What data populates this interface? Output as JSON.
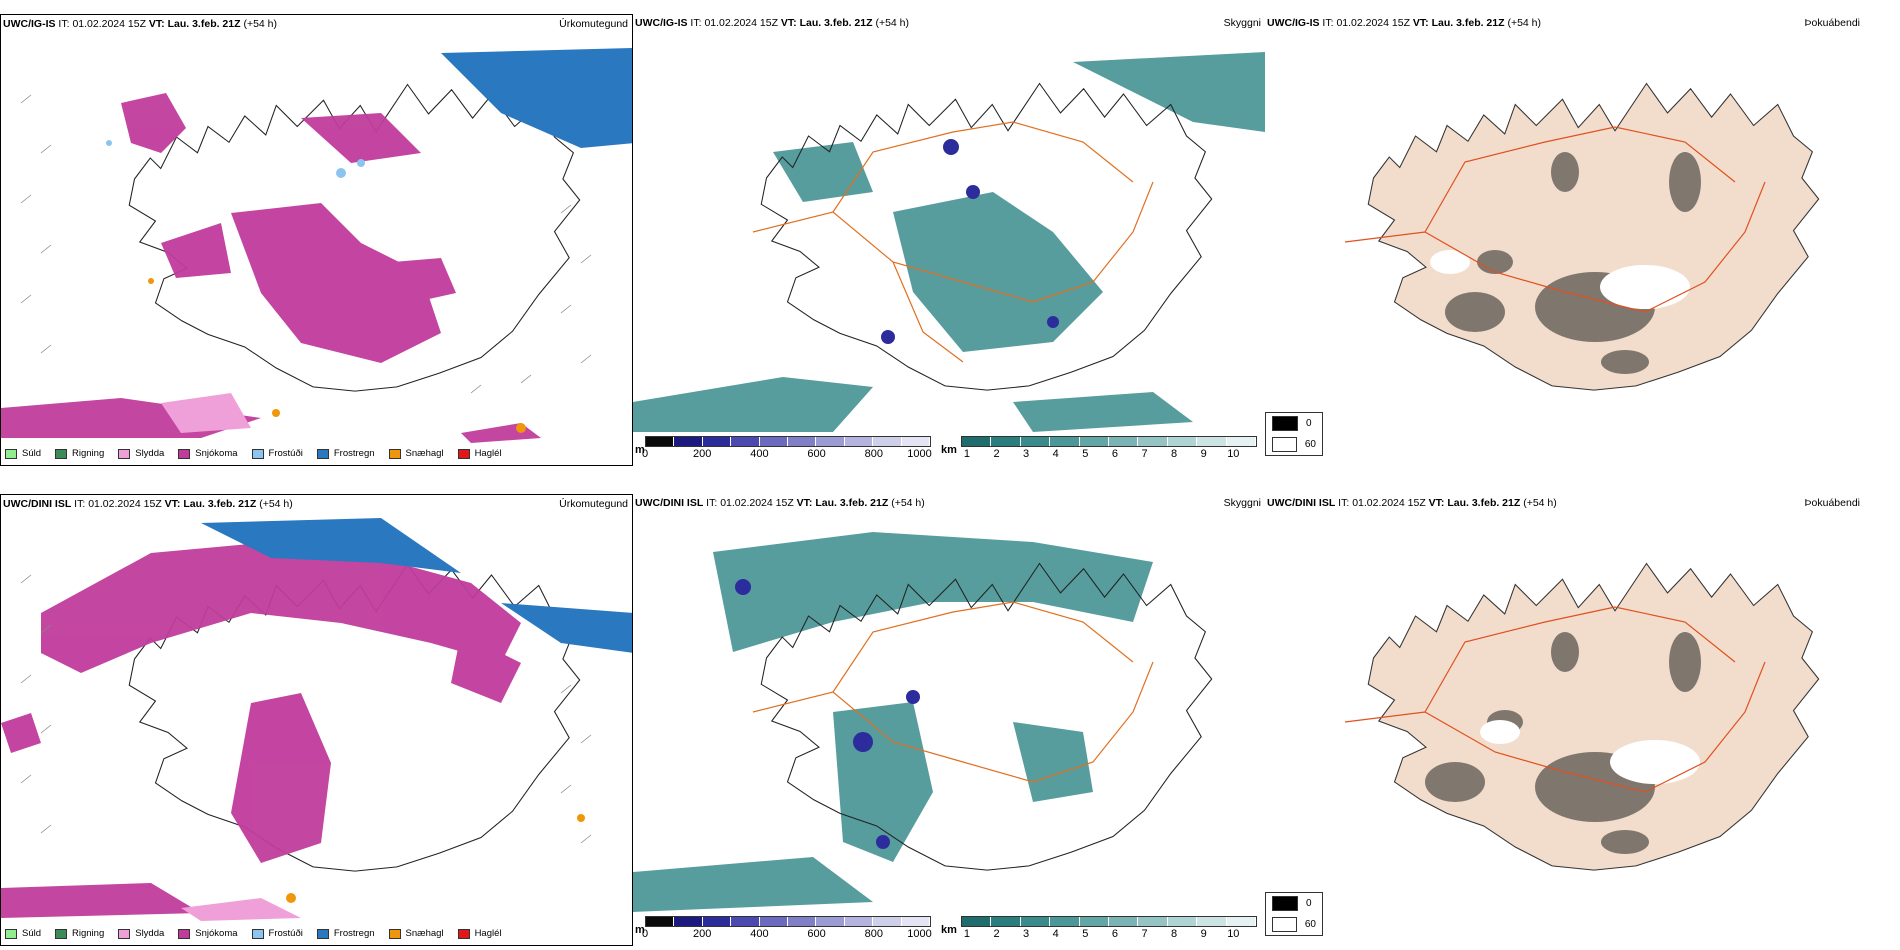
{
  "rows": [
    {
      "header": {
        "model": "UWC/IG-IS",
        "it_label": "IT:",
        "it_value": "01.02.2024 15Z",
        "vt_label": "VT:",
        "vt_value": "Lau. 3.feb. 21Z",
        "lead": "(+54 h)"
      }
    },
    {
      "header": {
        "model": "UWC/DINI ISL",
        "it_label": "IT:",
        "it_value": "01.02.2024 15Z",
        "vt_label": "VT:",
        "vt_value": "Lau. 3.feb. 21Z",
        "lead": "(+54 h)"
      }
    }
  ],
  "panel_titles": {
    "precip": "Úrkomutegund",
    "visibility": "Skyggni",
    "fog": "Þokuábendi"
  },
  "precip_legend": [
    {
      "label": "Súld",
      "color": "#90ee90"
    },
    {
      "label": "Rigning",
      "color": "#3c8c5a"
    },
    {
      "label": "Slydda",
      "color": "#f0a0d8"
    },
    {
      "label": "Snjókoma",
      "color": "#c03c9c"
    },
    {
      "label": "Frostúði",
      "color": "#8cc4f0"
    },
    {
      "label": "Frostregn",
      "color": "#2a78c0"
    },
    {
      "label": "Snæhagl",
      "color": "#f0960a"
    },
    {
      "label": "Haglél",
      "color": "#e01818"
    }
  ],
  "visibility_scale_m": {
    "unit": "m",
    "ticks": [
      "0",
      "200",
      "400",
      "600",
      "800",
      "1000"
    ],
    "colors": [
      "#0a0a0a",
      "#1a1a80",
      "#2c2c9c",
      "#4a4ab0",
      "#6a6ac0",
      "#8080c8",
      "#9c9cd4",
      "#b4b4de",
      "#cfcfea",
      "#e4e4f4"
    ]
  },
  "visibility_scale_km": {
    "unit": "km",
    "ticks": [
      "1",
      "2",
      "3",
      "4",
      "5",
      "6",
      "7",
      "8",
      "9",
      "10"
    ],
    "colors": [
      "#1e6e6e",
      "#2a7e7e",
      "#3a8c8c",
      "#4c9898",
      "#62a6a6",
      "#7ab4b4",
      "#94c4c4",
      "#b0d4d4",
      "#cce4e4",
      "#e6f2f2"
    ]
  },
  "fog_legend": [
    {
      "label": "0",
      "color": "#000000"
    },
    {
      "label": "60",
      "color": "#ffffff"
    }
  ]
}
